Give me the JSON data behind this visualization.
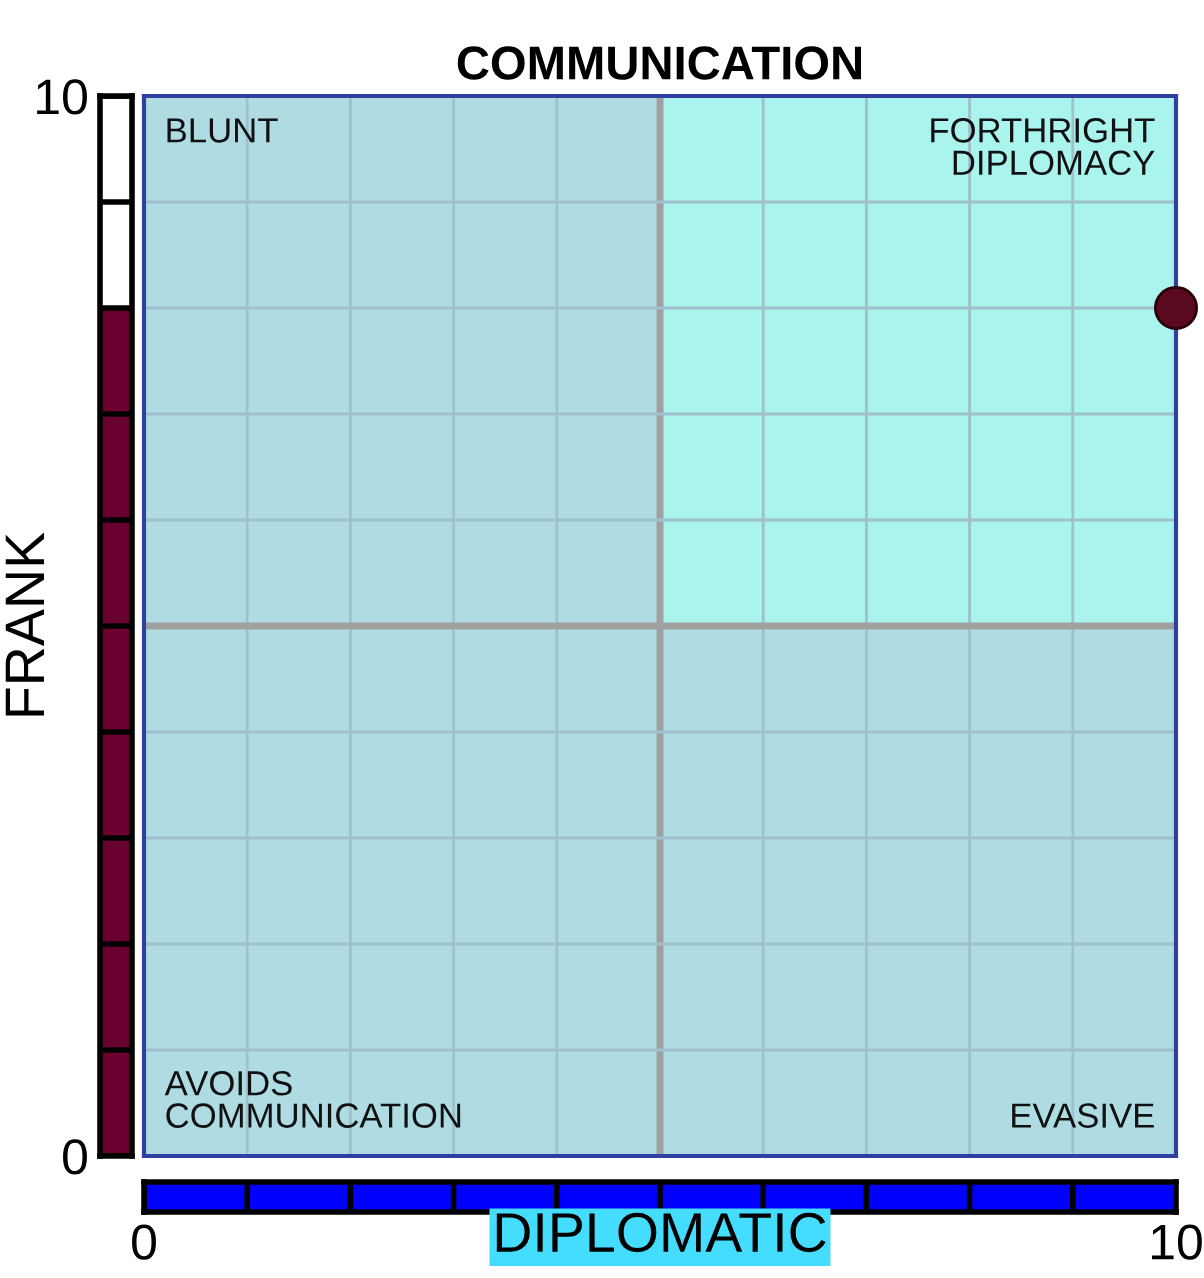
{
  "chart_data": {
    "type": "scatter",
    "title": "COMMUNICATION",
    "xlabel": "DIPLOMATIC",
    "ylabel": "FRANK",
    "x": [
      10
    ],
    "values": [
      8
    ],
    "color": "#5a0a1e",
    "marker": "circle",
    "xlim": [
      0,
      10
    ],
    "ylim": [
      0,
      10
    ],
    "xticks": [
      0,
      {
        "value": 1,
        "label": null
      },
      {
        "value": 2,
        "label": null
      },
      {
        "value": 3,
        "label": null
      },
      {
        "value": 4,
        "label": null
      },
      {
        "value": 5,
        "label": null
      },
      {
        "value": 6,
        "label": null
      },
      {
        "value": 7,
        "label": null
      },
      {
        "value": 8,
        "label": null
      },
      {
        "value": 9,
        "label": null
      },
      10
    ],
    "yticks": [
      0,
      {
        "value": 1,
        "label": null
      },
      {
        "value": 2,
        "label": null
      },
      {
        "value": 3,
        "label": null
      },
      {
        "value": 4,
        "label": null
      },
      {
        "value": 5,
        "label": null
      },
      {
        "value": 6,
        "label": null
      },
      {
        "value": 7,
        "label": null
      },
      {
        "value": 8,
        "label": null
      },
      {
        "value": 9,
        "label": null
      },
      10
    ],
    "grid": true,
    "annotations": [
      "BLUNT",
      "FORTHRIGHT\nDIPLOMACY",
      "AVOIDS\nCOMMUNICATION",
      "EVASIVE"
    ]
  }
}
